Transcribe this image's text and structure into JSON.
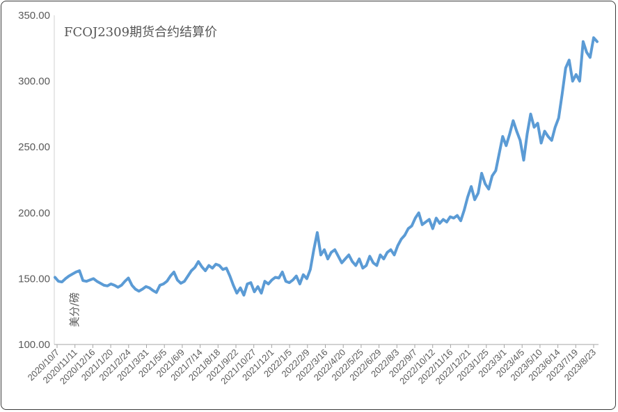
{
  "chart_data": {
    "type": "line",
    "title": "FCOJ2309期货合约结算价",
    "ylabel": "美分/磅",
    "xlabel": "",
    "ylim": [
      100,
      350
    ],
    "yticks": [
      "100.00",
      "150.00",
      "200.00",
      "250.00",
      "300.00",
      "350.00"
    ],
    "grid": false,
    "legend": "none",
    "line_color": "#5b9bd5",
    "x_ticks": [
      "2020/10/7",
      "2020/11/11",
      "2020/12/16",
      "2021/1/20",
      "2021/2/24",
      "2021/3/31",
      "2021/5/5",
      "2021/6/9",
      "2021/7/14",
      "2021/8/18",
      "2021/9/22",
      "2021/10/27",
      "2021/12/1",
      "2022/1/5",
      "2022/2/9",
      "2022/3/16",
      "2022/4/20",
      "2022/5/25",
      "2022/6/29",
      "2022/8/3",
      "2022/9/7",
      "2022/10/12",
      "2022/11/16",
      "2022/12/21",
      "2023/1/25",
      "2023/3/1",
      "2023/4/5",
      "2023/5/10",
      "2023/6/14",
      "2023/7/19",
      "2023/8/23"
    ],
    "series": [
      {
        "values": [
          151.0,
          148.0,
          147.5,
          150.0,
          152.0,
          153.5,
          155.0,
          156.0,
          148.5,
          148.0,
          149.0,
          150.0,
          148.0,
          146.5,
          145.0,
          144.5,
          146.0,
          145.0,
          143.5,
          145.0,
          148.0,
          150.5,
          145.0,
          142.0,
          140.5,
          142.0,
          144.0,
          143.0,
          141.0,
          139.5,
          145.0,
          146.0,
          148.0,
          152.0,
          155.0,
          149.0,
          146.5,
          148.0,
          152.0,
          156.0,
          158.5,
          163.0,
          159.0,
          156.0,
          160.0,
          158.0,
          161.0,
          160.0,
          157.0,
          158.0,
          152.0,
          145.0,
          139.0,
          143.0,
          137.5,
          146.0,
          147.0,
          140.0,
          144.0,
          139.0,
          148.0,
          146.0,
          149.0,
          151.0,
          150.5,
          155.0,
          148.0,
          147.0,
          149.0,
          152.0,
          146.0,
          153.0,
          150.0,
          157.0,
          172.0,
          185.0,
          168.0,
          172.0,
          165.0,
          170.0,
          172.0,
          167.0,
          162.0,
          165.0,
          168.0,
          163.0,
          160.0,
          165.0,
          158.0,
          160.0,
          167.0,
          162.0,
          160.0,
          168.0,
          165.0,
          170.0,
          172.0,
          168.0,
          175.0,
          180.0,
          183.0,
          188.0,
          190.0,
          196.0,
          200.0,
          191.0,
          193.0,
          195.0,
          188.0,
          196.0,
          192.0,
          195.0,
          193.0,
          197.0,
          196.0,
          198.0,
          194.0,
          202.0,
          212.0,
          220.0,
          210.0,
          215.0,
          230.0,
          222.0,
          218.0,
          228.0,
          232.0,
          245.0,
          258.0,
          251.0,
          260.0,
          270.0,
          262.0,
          255.0,
          240.0,
          260.0,
          275.0,
          265.0,
          268.0,
          253.0,
          262.0,
          258.0,
          255.0,
          265.0,
          272.0,
          290.0,
          310.0,
          316.0,
          300.0,
          305.0,
          300.0,
          330.0,
          322.0,
          318.0,
          333.0,
          330.0
        ]
      }
    ]
  }
}
